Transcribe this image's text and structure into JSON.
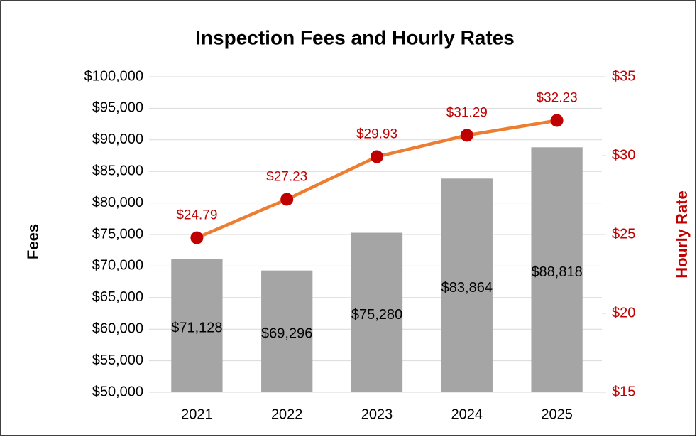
{
  "chart_data": {
    "type": "combo",
    "title": "Inspection Fees and Hourly Rates",
    "y_label": "Fees",
    "y2_label": "Hourly Rate",
    "categories": [
      "2021",
      "2022",
      "2023",
      "2024",
      "2025"
    ],
    "series": [
      {
        "type": "bar",
        "color": "#a5a5a5",
        "axis": "y",
        "values": [
          71128,
          69296,
          75280,
          83864,
          88818
        ],
        "value_labels": [
          "$71,128",
          "$69,296",
          "$75,280",
          "$83,864",
          "$88,818"
        ]
      },
      {
        "type": "line",
        "color": "#ed7d31",
        "marker_color": "#c00000",
        "axis": "y2",
        "values": [
          24.79,
          27.23,
          29.93,
          31.29,
          32.23
        ],
        "value_labels": [
          "$24.79",
          "$27.23",
          "$29.93",
          "$31.29",
          "$32.23"
        ]
      }
    ],
    "ylim": [
      50000,
      100000
    ],
    "yticks": [
      {
        "value": 50000,
        "label": "$50,000"
      },
      {
        "value": 55000,
        "label": "$55,000"
      },
      {
        "value": 60000,
        "label": "$60,000"
      },
      {
        "value": 65000,
        "label": "$65,000"
      },
      {
        "value": 70000,
        "label": "$70,000"
      },
      {
        "value": 75000,
        "label": "$75,000"
      },
      {
        "value": 80000,
        "label": "$80,000"
      },
      {
        "value": 85000,
        "label": "$85,000"
      },
      {
        "value": 90000,
        "label": "$90,000"
      },
      {
        "value": 95000,
        "label": "$95,000"
      },
      {
        "value": 100000,
        "label": "$100,000"
      }
    ],
    "y2lim": [
      15,
      35
    ],
    "y2ticks": [
      {
        "value": 15,
        "label": "$15"
      },
      {
        "value": 20,
        "label": "$20"
      },
      {
        "value": 25,
        "label": "$25"
      },
      {
        "value": 30,
        "label": "$30"
      },
      {
        "value": 35,
        "label": "$35"
      }
    ],
    "y2_color": "#c00000",
    "grid": true
  }
}
